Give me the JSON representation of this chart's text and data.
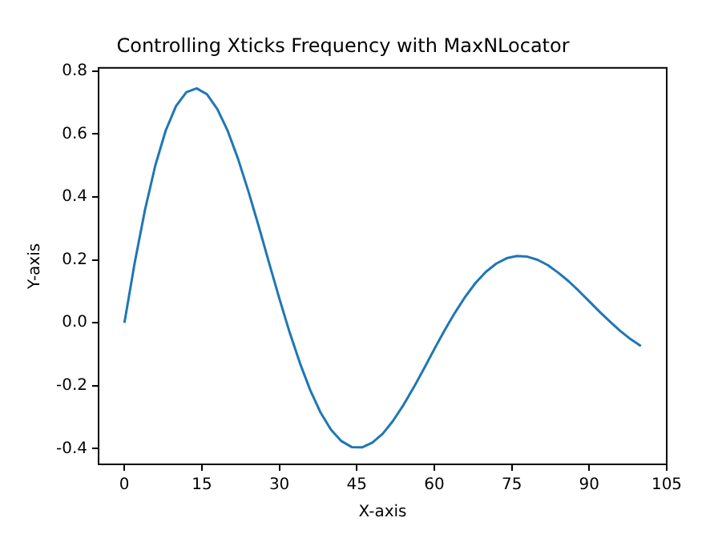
{
  "chart_data": {
    "type": "line",
    "title": "Controlling Xticks Frequency with MaxNLocator",
    "xlabel": "X-axis",
    "ylabel": "Y-axis",
    "x": [
      0,
      2,
      4,
      6,
      8,
      10,
      12,
      14,
      16,
      18,
      20,
      22,
      24,
      26,
      28,
      30,
      32,
      34,
      36,
      38,
      40,
      42,
      44,
      46,
      48,
      50,
      52,
      54,
      56,
      58,
      60,
      62,
      64,
      66,
      68,
      70,
      72,
      74,
      76,
      78,
      80,
      82,
      84,
      86,
      88,
      90,
      92,
      94,
      96,
      98,
      100
    ],
    "series": [
      {
        "color": "#1f77b4",
        "values": [
          0,
          0.191,
          0.36,
          0.501,
          0.611,
          0.689,
          0.733,
          0.745,
          0.726,
          0.679,
          0.61,
          0.521,
          0.418,
          0.307,
          0.191,
          0.077,
          -0.031,
          -0.129,
          -0.215,
          -0.286,
          -0.34,
          -0.376,
          -0.395,
          -0.396,
          -0.381,
          -0.353,
          -0.312,
          -0.262,
          -0.206,
          -0.146,
          -0.084,
          -0.024,
          0.032,
          0.083,
          0.127,
          0.162,
          0.188,
          0.205,
          0.212,
          0.21,
          0.2,
          0.183,
          0.159,
          0.132,
          0.101,
          0.068,
          0.035,
          0.004,
          -0.026,
          -0.052,
          -0.074
        ]
      }
    ],
    "xlim": [
      -5,
      105
    ],
    "ylim": [
      -0.45,
      0.81
    ],
    "xticks": [
      0,
      15,
      30,
      45,
      60,
      75,
      90,
      105
    ],
    "yticks": [
      {
        "value": -0.4,
        "label": "-0.4"
      },
      {
        "value": -0.2,
        "label": "-0.2"
      },
      {
        "value": 0,
        "label": "0.0"
      },
      {
        "value": 0.2,
        "label": "0.2"
      },
      {
        "value": 0.4,
        "label": "0.4"
      },
      {
        "value": 0.6,
        "label": "0.6"
      },
      {
        "value": 0.8,
        "label": "0.8"
      }
    ],
    "grid": false,
    "legend": false,
    "marker": "none",
    "line_style": "solid"
  }
}
